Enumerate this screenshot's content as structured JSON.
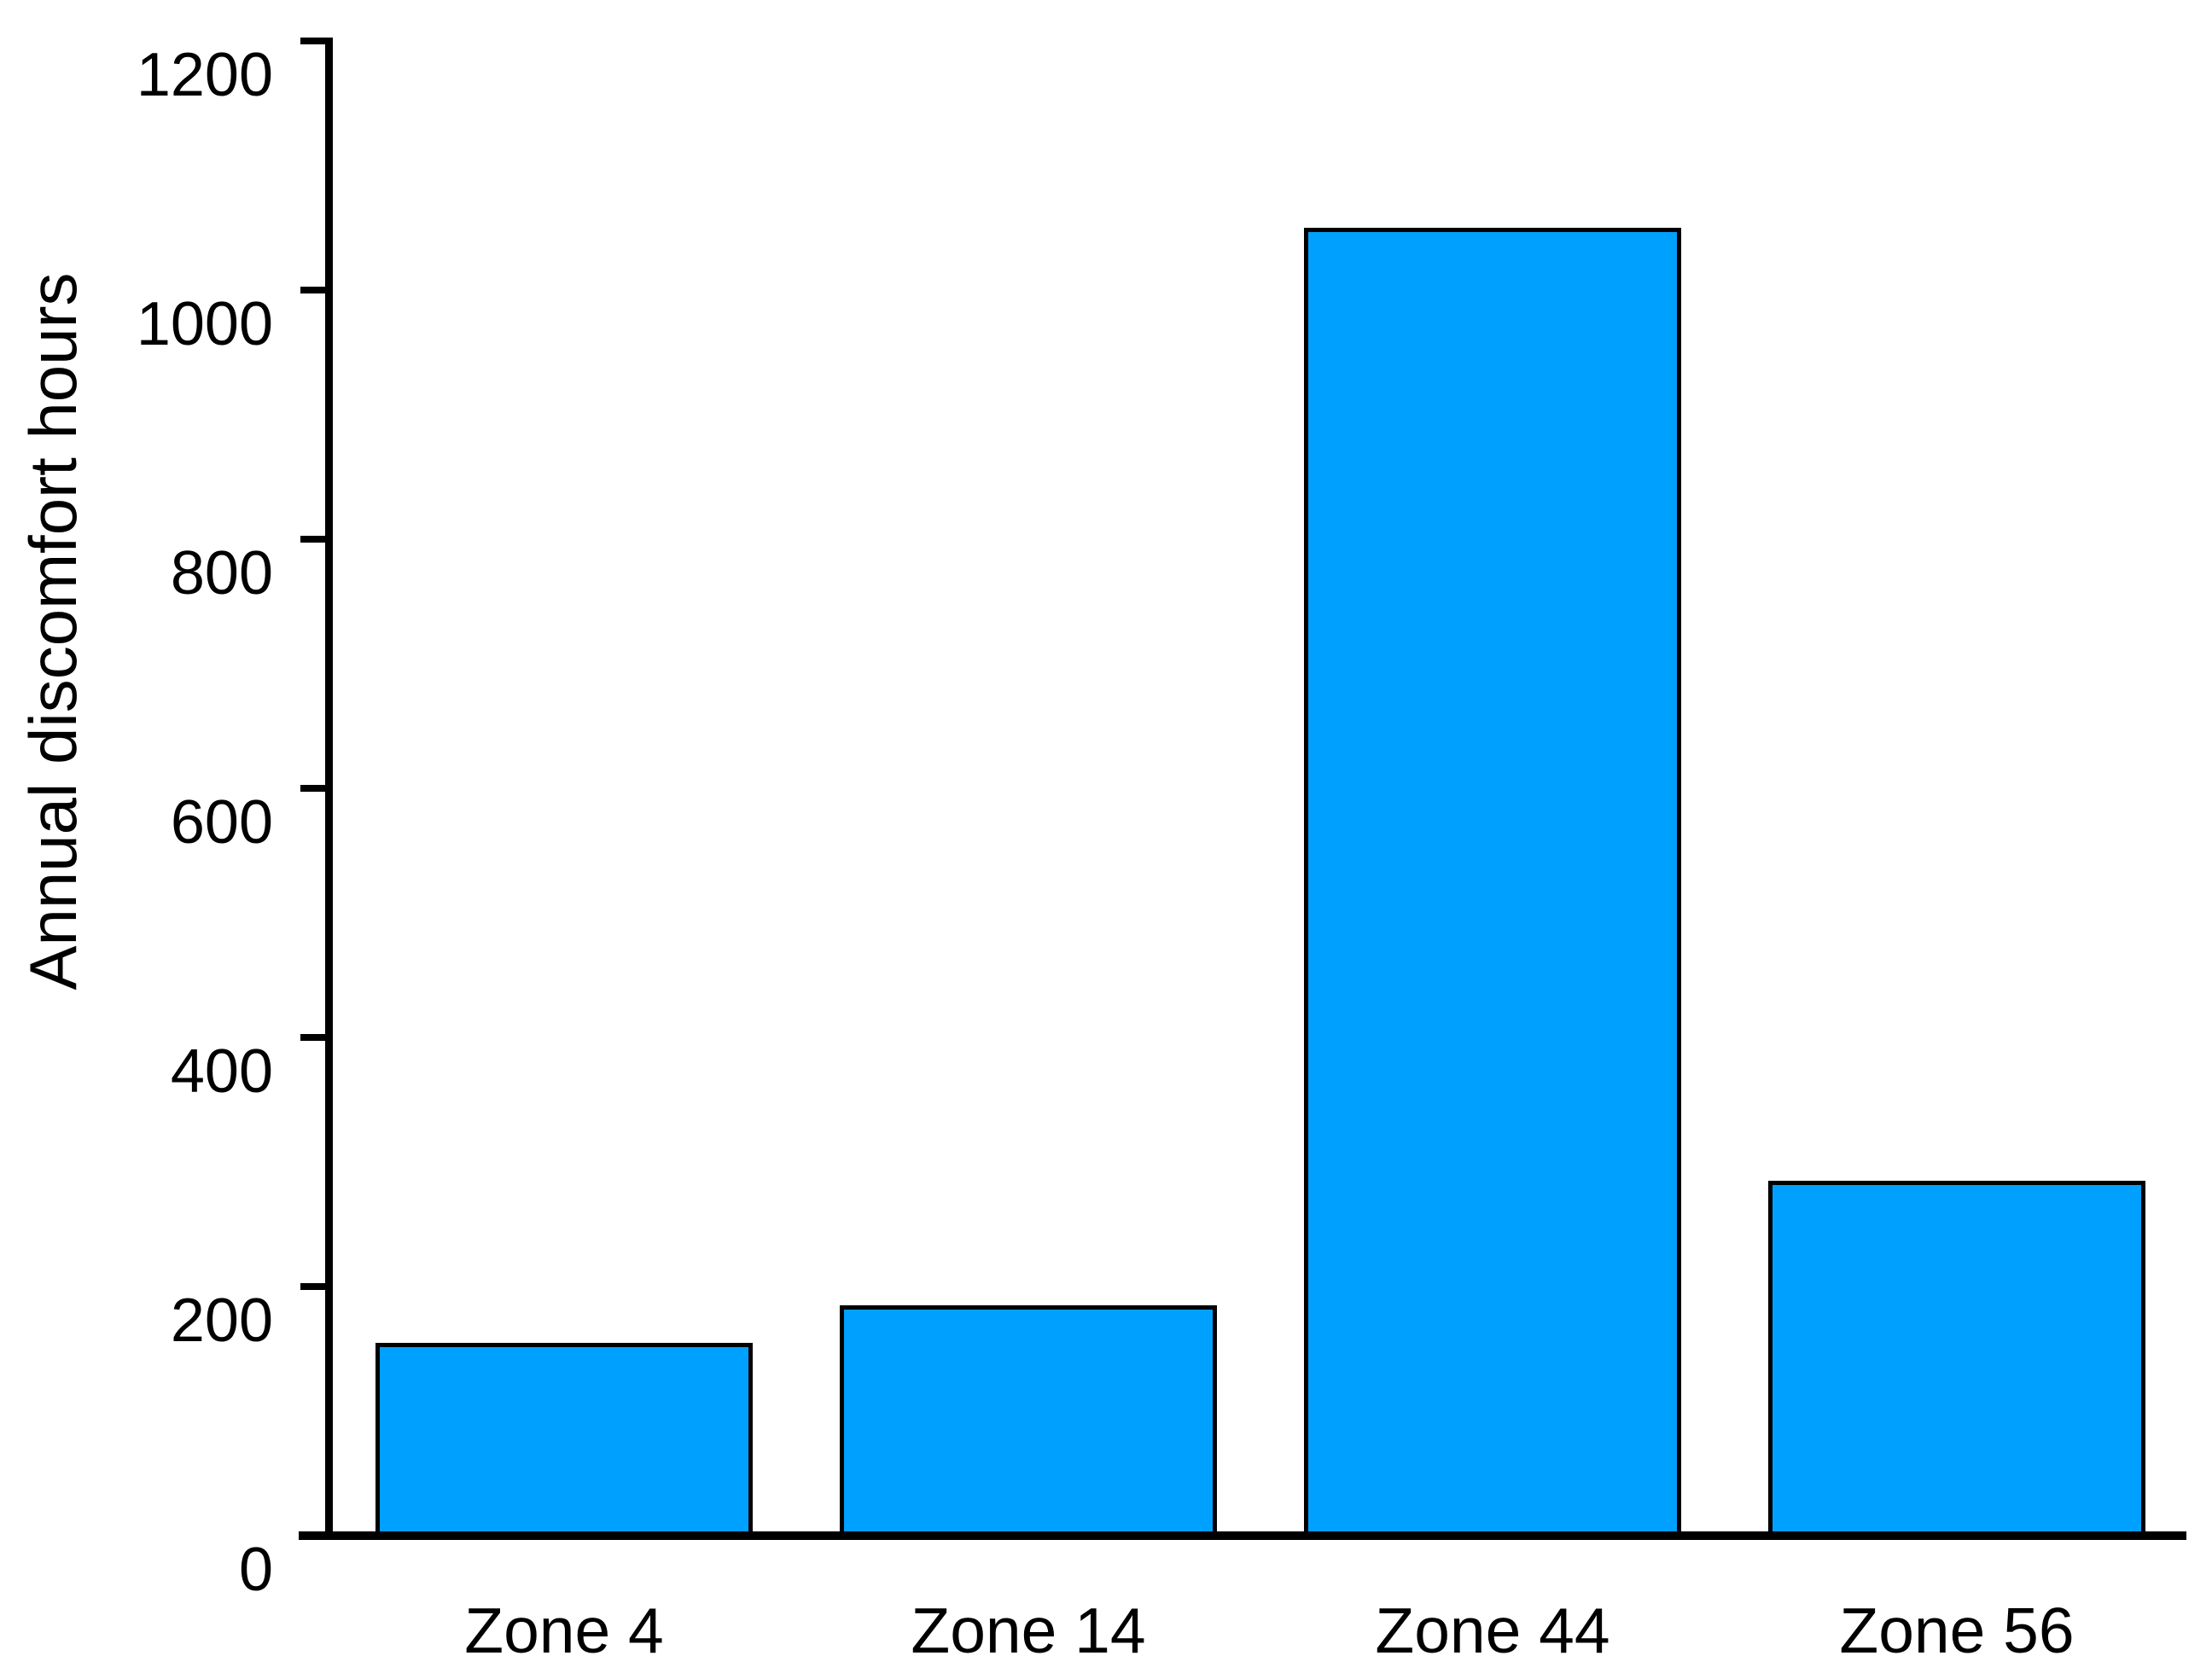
{
  "chart_data": {
    "type": "bar",
    "categories": [
      "Zone 4",
      "Zone 14",
      "Zone 44",
      "Zone 56"
    ],
    "values": [
      155,
      185,
      1050,
      285
    ],
    "title": "",
    "xlabel": "",
    "ylabel": "Annual discomfort hours",
    "ylim": [
      0,
      1200
    ],
    "yticks": [
      0,
      200,
      400,
      600,
      800,
      1000,
      1200
    ],
    "ytick_labels": [
      "0",
      "200",
      "400",
      "600",
      "800",
      "1000",
      "1200"
    ],
    "grid": false,
    "legend": null,
    "colors": {
      "bar_fill": "#00A0FF",
      "bar_border": "#000000",
      "axis": "#000000",
      "text": "#000000",
      "background": "#FFFFFF"
    }
  }
}
